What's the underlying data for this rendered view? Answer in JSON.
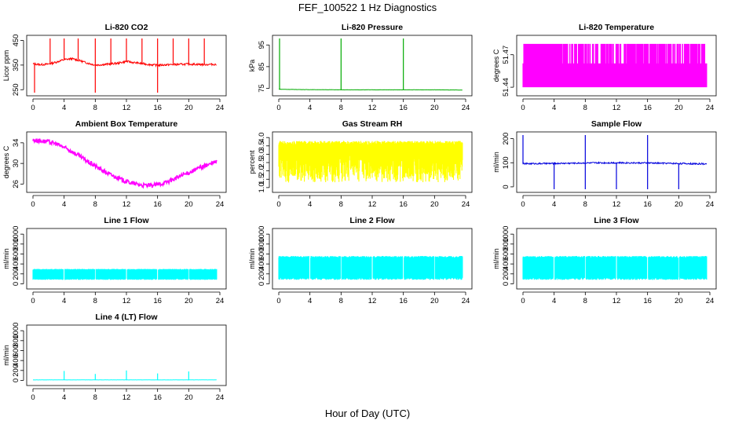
{
  "title": "FEF_100522  1 Hz Diagnostics",
  "xlabel": "Hour of Day (UTC)",
  "chart_data": [
    {
      "type": "line",
      "title": "Li-820 CO2",
      "ylabel": "Licor ppm",
      "xlim": [
        0,
        24
      ],
      "ylim": [
        238,
        458
      ],
      "xticks": [
        0,
        4,
        8,
        12,
        16,
        20,
        24
      ],
      "yticks": [
        250,
        350,
        450
      ],
      "color": "#ff0000",
      "series": [
        {
          "x": [
            0,
            1,
            2,
            3,
            4,
            5,
            6,
            7,
            8,
            9,
            10,
            11,
            12,
            13,
            14,
            15,
            16,
            17,
            18,
            19,
            20,
            21,
            22,
            23,
            23.6
          ],
          "values": [
            355,
            352,
            354,
            362,
            372,
            376,
            368,
            358,
            350,
            352,
            355,
            358,
            365,
            360,
            356,
            352,
            349,
            351,
            352,
            353,
            354,
            353,
            352,
            353,
            352
          ]
        }
      ],
      "spikes_up": [
        2.2,
        4,
        5.8,
        8,
        10,
        12,
        14,
        16,
        18,
        20,
        22
      ],
      "spikes_down": [
        0.2,
        8,
        16
      ]
    },
    {
      "type": "line",
      "title": "Li-820 Pressure",
      "ylabel": "kPa",
      "xlim": [
        0,
        24
      ],
      "ylim": [
        73,
        98
      ],
      "xticks": [
        0,
        4,
        8,
        12,
        16,
        20,
        24
      ],
      "yticks": [
        75,
        85,
        95
      ],
      "color": "#00aa00",
      "series": [
        {
          "x": [
            0,
            1,
            4,
            8,
            12,
            16,
            20,
            23.6
          ],
          "values": [
            74.6,
            74.5,
            74.4,
            74.3,
            74.3,
            74.3,
            74.3,
            74.2
          ]
        }
      ],
      "spikes_up": [
        0.1,
        8,
        16
      ]
    },
    {
      "type": "area",
      "title": "Li-820 Temperature",
      "ylabel": "degrees C",
      "xlim": [
        0,
        24
      ],
      "ylim": [
        51.435,
        51.485
      ],
      "xticks": [
        0,
        4,
        8,
        12,
        16,
        20,
        24
      ],
      "yticks": [
        51.44,
        51.47
      ],
      "color": "#ff00ff",
      "series": [
        {
          "x": [
            0,
            23.6
          ],
          "values": [
            51.44,
            51.48
          ]
        }
      ]
    },
    {
      "type": "line",
      "title": "Ambient Box Temperature",
      "ylabel": "degrees C",
      "xlim": [
        0,
        24
      ],
      "ylim": [
        25,
        35.5
      ],
      "xticks": [
        0,
        4,
        8,
        12,
        16,
        20,
        24
      ],
      "yticks": [
        26,
        30,
        34
      ],
      "color": "#ff00ff",
      "series": [
        {
          "x": [
            0,
            1,
            2,
            3,
            4,
            5,
            6,
            7,
            8,
            9,
            10,
            11,
            12,
            13,
            14,
            15,
            16,
            17,
            18,
            19,
            20,
            21,
            22,
            23,
            23.6
          ],
          "values": [
            34.5,
            34.4,
            34.2,
            33.8,
            33.1,
            32.3,
            31.4,
            30.4,
            29.5,
            28.6,
            27.8,
            27.1,
            26.5,
            26.1,
            25.8,
            25.7,
            25.9,
            26.3,
            26.9,
            27.6,
            28.2,
            28.9,
            29.5,
            30.0,
            30.4
          ]
        }
      ]
    },
    {
      "type": "area",
      "title": "Gas Stream RH",
      "ylabel": "percent",
      "xlim": [
        0,
        24
      ],
      "ylim": [
        0.9,
        4.15
      ],
      "xticks": [
        0,
        4,
        8,
        12,
        16,
        20,
        24
      ],
      "yticks": [
        1.0,
        1.5,
        2.0,
        2.5,
        3.0,
        3.5,
        4.0
      ],
      "color": "#ffff00",
      "series": [
        {
          "x": [
            0,
            23.6
          ],
          "values": [
            1.3,
            3.8
          ]
        }
      ]
    },
    {
      "type": "line",
      "title": "Sample Flow",
      "ylabel": "ml/min",
      "xlim": [
        0,
        24
      ],
      "ylim": [
        -10,
        215
      ],
      "xticks": [
        0,
        4,
        8,
        12,
        16,
        20,
        24
      ],
      "yticks": [
        0,
        100,
        200
      ],
      "color": "#0000dd",
      "series": [
        {
          "x": [
            0,
            4,
            8,
            12,
            16,
            20,
            23.6
          ],
          "values": [
            96,
            97,
            99,
            100,
            99,
            97,
            95
          ]
        }
      ],
      "spikes_up": [
        0,
        8,
        16
      ],
      "spikes_down": [
        4,
        8,
        12,
        16,
        20
      ]
    },
    {
      "type": "area",
      "title": "Line 1 Flow",
      "ylabel": "ml/min",
      "xlim": [
        0,
        24
      ],
      "ylim": [
        -40,
        1050
      ],
      "xticks": [
        0,
        4,
        8,
        12,
        16,
        20,
        24
      ],
      "yticks": [
        0,
        200,
        400,
        600,
        800,
        1000
      ],
      "color": "#00ffff",
      "series": [
        {
          "x": [
            0,
            23.6
          ],
          "values": [
            80,
            300
          ]
        }
      ],
      "gaps": [
        4,
        8,
        12,
        16,
        20
      ]
    },
    {
      "type": "area",
      "title": "Line 2 Flow",
      "ylabel": "ml/min",
      "xlim": [
        0,
        24
      ],
      "ylim": [
        -40,
        1050
      ],
      "xticks": [
        0,
        4,
        8,
        12,
        16,
        20,
        24
      ],
      "yticks": [
        0,
        200,
        400,
        600,
        800,
        1000
      ],
      "color": "#00ffff",
      "series": [
        {
          "x": [
            0,
            23.6
          ],
          "values": [
            80,
            560
          ]
        }
      ],
      "gaps": [
        4,
        8,
        12,
        16,
        20
      ]
    },
    {
      "type": "area",
      "title": "Line 3 Flow",
      "ylabel": "ml/min",
      "xlim": [
        0,
        24
      ],
      "ylim": [
        -40,
        1050
      ],
      "xticks": [
        0,
        4,
        8,
        12,
        16,
        20,
        24
      ],
      "yticks": [
        0,
        200,
        400,
        600,
        800,
        1000
      ],
      "color": "#00ffff",
      "series": [
        {
          "x": [
            0,
            23.6
          ],
          "values": [
            80,
            560
          ]
        }
      ],
      "gaps": [
        4,
        8,
        12,
        16,
        20
      ]
    },
    {
      "type": "line",
      "title": "Line 4 (LT) Flow",
      "ylabel": "ml/min",
      "xlim": [
        0,
        24
      ],
      "ylim": [
        -40,
        1050
      ],
      "xticks": [
        0,
        4,
        8,
        12,
        16,
        20,
        24
      ],
      "yticks": [
        0,
        200,
        400,
        600,
        800,
        1000
      ],
      "color": "#00ffff",
      "series": [
        {
          "x": [
            0,
            4,
            8,
            12,
            16,
            20,
            23.6
          ],
          "values": [
            10,
            10,
            10,
            10,
            10,
            10,
            10
          ]
        }
      ],
      "spikes_up": [
        4,
        8,
        12,
        16,
        20
      ],
      "spike_values": [
        190,
        130,
        200,
        140,
        180
      ]
    }
  ]
}
